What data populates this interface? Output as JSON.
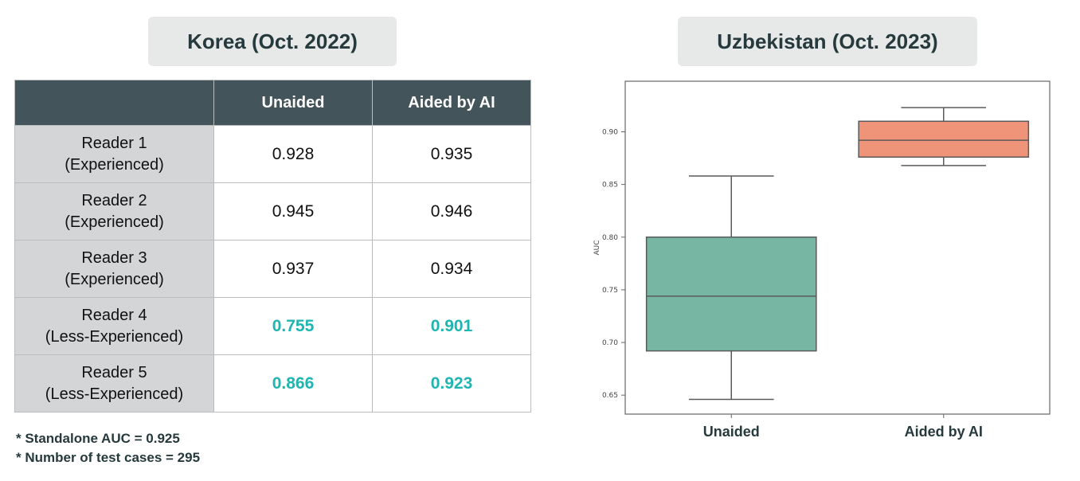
{
  "left_title": "Korea (Oct. 2022)",
  "right_title": "Uzbekistan (Oct. 2023)",
  "table": {
    "headers": [
      "",
      "Unaided",
      "Aided by AI"
    ],
    "rows": [
      {
        "line1": "Reader 1",
        "line2": "(Experienced)",
        "unaided": "0.928",
        "aided": "0.935"
      },
      {
        "line1": "Reader 2",
        "line2": "(Experienced)",
        "unaided": "0.945",
        "aided": "0.946"
      },
      {
        "line1": "Reader 3",
        "line2": "(Experienced)",
        "unaided": "0.937",
        "aided": "0.934"
      },
      {
        "line1": "Reader 4",
        "line2": "(Less-Experienced)",
        "unaided": "0.755",
        "aided": "0.901"
      },
      {
        "line1": "Reader 5",
        "line2": "(Less-Experienced)",
        "unaided": "0.866",
        "aided": "0.923"
      }
    ],
    "highlight_rows": [
      3,
      4
    ],
    "highlight_color": "#1fb5b0"
  },
  "footnotes": {
    "standalone": "* Standalone AUC = 0.925",
    "cases": "* Number of test cases = 295"
  },
  "chart_data": {
    "type": "box",
    "categories": [
      "Unaided",
      "Aided by AI"
    ],
    "ylabel": "AUC",
    "ylim": [
      0.632,
      0.948
    ],
    "yticks": [
      "0.65",
      "0.70",
      "0.75",
      "0.80",
      "0.85",
      "0.90"
    ],
    "boxes": [
      {
        "name": "Unaided",
        "whisker_low": 0.646,
        "q1": 0.692,
        "median": 0.744,
        "q3": 0.8,
        "whisker_high": 0.858,
        "color": "#76b6a2"
      },
      {
        "name": "Aided by AI",
        "whisker_low": 0.868,
        "q1": 0.876,
        "median": 0.892,
        "q3": 0.91,
        "whisker_high": 0.923,
        "color": "#ef9479"
      }
    ],
    "grid": false
  }
}
